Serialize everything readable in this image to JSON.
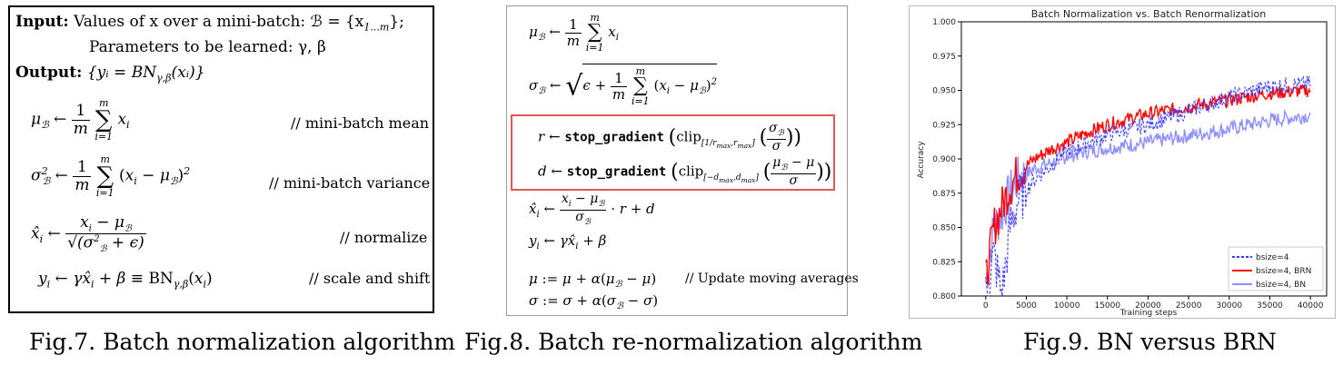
{
  "fig7": {
    "input_label": "Input:",
    "input_text": "Values of x over a mini-batch: ℬ = {x",
    "input_sub": "1...m",
    "input_end": "};",
    "params_text": "Parameters to be learned: γ, β",
    "output_label": "Output:",
    "output_text": "{yᵢ = BN",
    "output_sub": "γ,β",
    "output_end": "(xᵢ)}",
    "comment_mean": "// mini-batch mean",
    "comment_var": "// mini-batch variance",
    "comment_norm": "// normalize",
    "comment_scale": "// scale and shift",
    "caption": "Fig.7. Batch normalization algorithm"
  },
  "fig8": {
    "stop_gradient": "stop_gradient",
    "clip": "clip",
    "comment_update": "// Update moving averages",
    "caption": "Fig.8. Batch re-normalization algorithm"
  },
  "fig9": {
    "caption": "Fig.9. BN versus BRN"
  },
  "chart_data": {
    "type": "line",
    "title": "Batch Normalization vs. Batch Renormalization",
    "xlabel": "Training steps",
    "ylabel": "Accuracy",
    "xlim": [
      -3000,
      42000
    ],
    "ylim": [
      0.8,
      1.0
    ],
    "xticks": [
      0,
      5000,
      10000,
      15000,
      20000,
      25000,
      30000,
      35000,
      40000
    ],
    "yticks": [
      "0.800",
      "0.825",
      "0.850",
      "0.875",
      "0.900",
      "0.925",
      "0.950",
      "0.975",
      "1.000"
    ],
    "legend_position": "bottom-right",
    "series": [
      {
        "name": "bsize=4",
        "color": "#3b3bff",
        "style": "dashed",
        "x": [
          0,
          1000,
          2000,
          3000,
          4000,
          6000,
          8000,
          10000,
          12000,
          15000,
          20000,
          25000,
          30000,
          35000,
          40000
        ],
        "y": [
          0.8,
          0.83,
          0.8,
          0.85,
          0.87,
          0.885,
          0.895,
          0.905,
          0.91,
          0.918,
          0.925,
          0.935,
          0.945,
          0.953,
          0.955
        ]
      },
      {
        "name": "bsize=4, BRN",
        "color": "#ff0000",
        "style": "solid",
        "x": [
          0,
          1000,
          2000,
          3000,
          4000,
          6000,
          8000,
          10000,
          12000,
          15000,
          20000,
          25000,
          30000,
          35000,
          40000
        ],
        "y": [
          0.81,
          0.85,
          0.865,
          0.88,
          0.89,
          0.9,
          0.907,
          0.912,
          0.918,
          0.925,
          0.933,
          0.938,
          0.943,
          0.948,
          0.95
        ]
      },
      {
        "name": "bsize=4, BN",
        "color": "#8f8fff",
        "style": "solid",
        "x": [
          0,
          1000,
          2000,
          3000,
          4000,
          6000,
          8000,
          10000,
          12000,
          15000,
          20000,
          25000,
          30000,
          35000,
          40000
        ],
        "y": [
          0.81,
          0.85,
          0.86,
          0.875,
          0.885,
          0.893,
          0.897,
          0.902,
          0.905,
          0.908,
          0.912,
          0.917,
          0.922,
          0.928,
          0.932
        ]
      }
    ]
  }
}
